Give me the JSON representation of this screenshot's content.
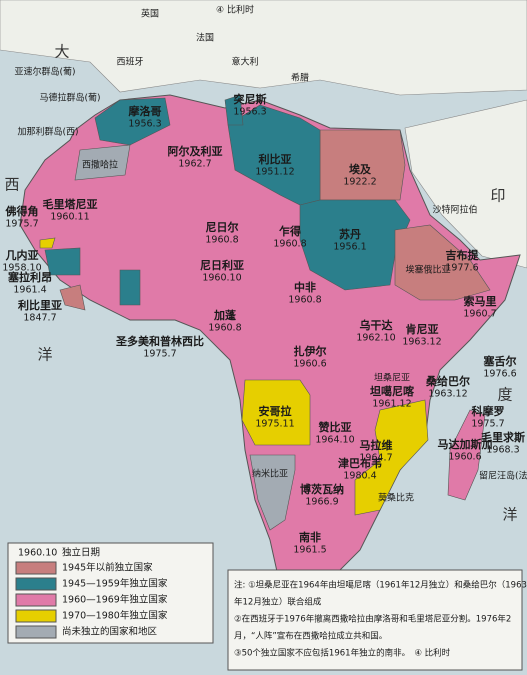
{
  "regions": [
    {
      "name": "摩洛哥",
      "date": "1956.3"
    },
    {
      "name": "突尼斯",
      "date": "1956.3"
    },
    {
      "name": "阿尔及利亚",
      "date": "1962.7"
    },
    {
      "name": "利比亚",
      "date": "1951.12"
    },
    {
      "name": "埃及",
      "date": "1922.2"
    },
    {
      "name": "毛里塔尼亚",
      "date": "1960.11"
    },
    {
      "name": "尼日尔",
      "date": "1960.8"
    },
    {
      "name": "乍得",
      "date": "1960.8"
    },
    {
      "name": "苏丹",
      "date": "1956.1"
    },
    {
      "name": "尼日利亚",
      "date": "1960.10"
    },
    {
      "name": "中非",
      "date": "1960.8"
    },
    {
      "name": "吉布提",
      "date": "1977.6"
    },
    {
      "name": "索马里",
      "date": "1960.7"
    },
    {
      "name": "肯尼亚",
      "date": "1963.12"
    },
    {
      "name": "乌干达",
      "date": "1962.10"
    },
    {
      "name": "扎伊尔",
      "date": "1960.6"
    },
    {
      "name": "加蓬",
      "date": "1960.8"
    },
    {
      "name": "坦噶尼喀",
      "date": "1961.12"
    },
    {
      "name": "桑给巴尔",
      "date": "1963.12"
    },
    {
      "name": "安哥拉",
      "date": "1975.11"
    },
    {
      "name": "赞比亚",
      "date": "1964.10"
    },
    {
      "name": "马拉维",
      "date": "1964.7"
    },
    {
      "name": "津巴布韦",
      "date": "1980.4"
    },
    {
      "name": "博茨瓦纳",
      "date": "1966.9"
    },
    {
      "name": "南非",
      "date": "1961.5"
    },
    {
      "name": "马达加斯加",
      "date": "1960.6"
    },
    {
      "name": "科摩罗",
      "date": "1975.7"
    },
    {
      "name": "塞舌尔",
      "date": "1976.6"
    },
    {
      "name": "毛里求斯",
      "date": "1968.3"
    },
    {
      "name": "佛得角",
      "date": "1975.7"
    },
    {
      "name": "几内亚",
      "date": "1958.10"
    },
    {
      "name": "塞拉利昂",
      "date": "1961.4"
    },
    {
      "name": "利比里亚",
      "date": "1847.7"
    },
    {
      "name": "圣多美和普林西比",
      "date": "1975.7"
    }
  ],
  "places": [
    "英国",
    "法国",
    "西班牙",
    "意大利",
    "希腊",
    "亚速尔群岛(葡)",
    "马德拉群岛(葡)",
    "加那利群岛(西)",
    "西撒哈拉",
    "纳米比亚",
    "埃塞俄比亚",
    "坦桑尼亚",
    "莫桑比克",
    "留尼汪岛(法)",
    "沙特阿拉伯",
    "④ 比利时"
  ],
  "oceans": [
    "大",
    "西",
    "洋",
    "印",
    "度",
    "洋"
  ],
  "legend": {
    "sample_date": "1960.10",
    "sample_label": "独立日期",
    "items": [
      {
        "label": "1945年以前独立国家",
        "color": "#c77e7e"
      },
      {
        "label": "1945—1959年独立国家",
        "color": "#2b7f8c"
      },
      {
        "label": "1960—1969年独立国家",
        "color": "#e07aa8"
      },
      {
        "label": "1970—1980年独立国家",
        "color": "#e6cf00"
      },
      {
        "label": "尚未独立的国家和地区",
        "color": "#a3abb3"
      }
    ]
  },
  "notes": [
    "注: ①坦桑尼亚在1964年由坦噶尼喀（1961年12月独立）和桑给巴尔（1963",
    "年12月独立）联合组成",
    "②在西班牙于1976年撤离西撒哈拉由摩洛哥和毛里塔尼亚分割。1976年2",
    "月，“人阵”宣布在西撒哈拉成立共和国。",
    "③50个独立国家不应包括1961年独立的南非。　④ 比利时"
  ]
}
